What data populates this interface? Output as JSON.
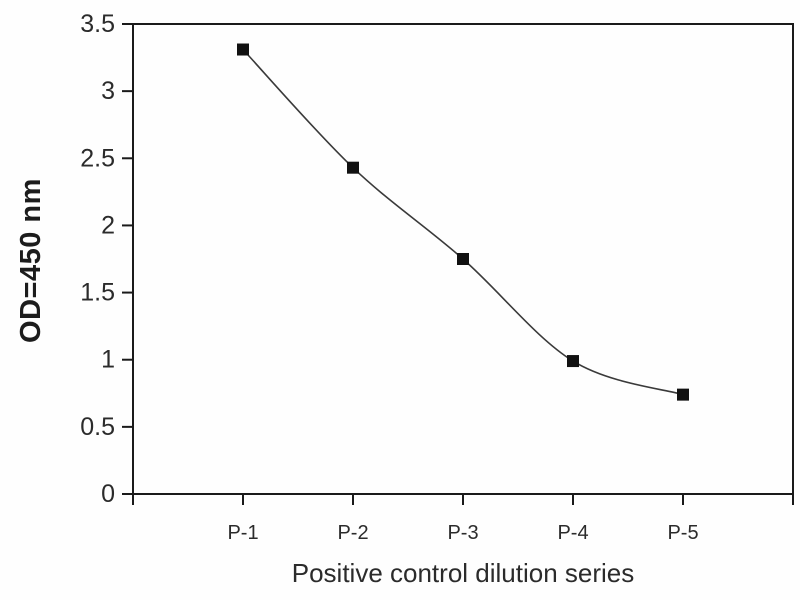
{
  "chart_data": {
    "type": "line",
    "title": "",
    "categories": [
      "P-1",
      "P-2",
      "P-3",
      "P-4",
      "P-5"
    ],
    "values": [
      3.31,
      2.43,
      1.75,
      0.99,
      0.74
    ],
    "xlabel": "Positive control dilution series",
    "ylabel": "OD=450 nm",
    "ylim": [
      0,
      3.5
    ],
    "ytick_interval": 0.5,
    "ytick_labels": [
      "0",
      "0.5",
      "1",
      "1.5",
      "2",
      "2.5",
      "3",
      "3.5"
    ],
    "grid": false,
    "legend": "none",
    "marker": "filled-square",
    "line_style": "smooth",
    "colors": {
      "line": "#3a3a3a",
      "marker": "#111111",
      "axis": "#1a1a1a",
      "tick_text": "#2b2b2b",
      "background": "#fefefe"
    }
  }
}
